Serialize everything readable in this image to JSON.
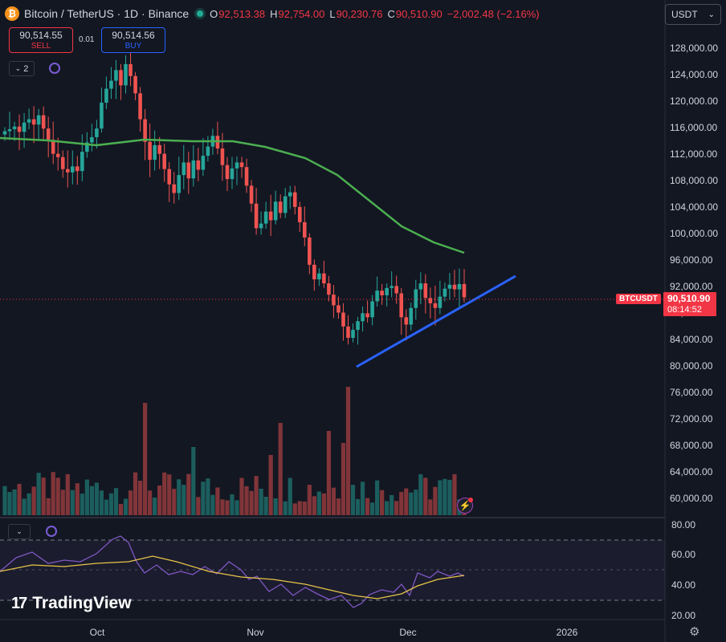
{
  "header": {
    "symbol_logo": "₿",
    "title": "Bitcoin / TetherUS · 1D · Binance",
    "ohlc": [
      {
        "k": "O",
        "v": "92,513.38"
      },
      {
        "k": "H",
        "v": "92,754.00"
      },
      {
        "k": "L",
        "v": "90,230.76"
      },
      {
        "k": "C",
        "v": "90,510.90"
      },
      {
        "k": "",
        "v": "−2,002.48 (−2.16%)"
      }
    ],
    "status_color": "#22ab94"
  },
  "trade": {
    "sell_price": "90,514.55",
    "sell_label": "SELL",
    "spread": "0.01",
    "buy_price": "90,514.56",
    "buy_label": "BUY"
  },
  "indicators": {
    "count": "2",
    "collapse_icon": "chevron-down-icon"
  },
  "currency": "USDT",
  "price_axis": [
    "128,000.00",
    "124,000.00",
    "120,000.00",
    "116,000.00",
    "112,000.00",
    "108,000.00",
    "104,000.00",
    "100,000.00",
    "96,000.00",
    "92,000.00",
    "88,000.00",
    "84,000.00",
    "80,000.00",
    "76,000.00",
    "72,000.00",
    "68,000.00",
    "64,000.00",
    "60,000.00"
  ],
  "current_price": {
    "symbol": "BTCUSDT",
    "value": "90,510.90",
    "countdown": "08:14:52"
  },
  "rsi_axis": [
    "80.00",
    "60.00",
    "40.00",
    "20.00"
  ],
  "time_axis": [
    "Oct",
    "Nov",
    "Dec",
    "2026"
  ],
  "brand": "TradingView",
  "colors": {
    "up": "#26a69a",
    "down": "#ef5350",
    "ma": "#4caf50",
    "trendline": "#2962ff",
    "rsi": "#7e57c2",
    "rsi_ma": "#e8c547",
    "background": "#131722"
  }
}
